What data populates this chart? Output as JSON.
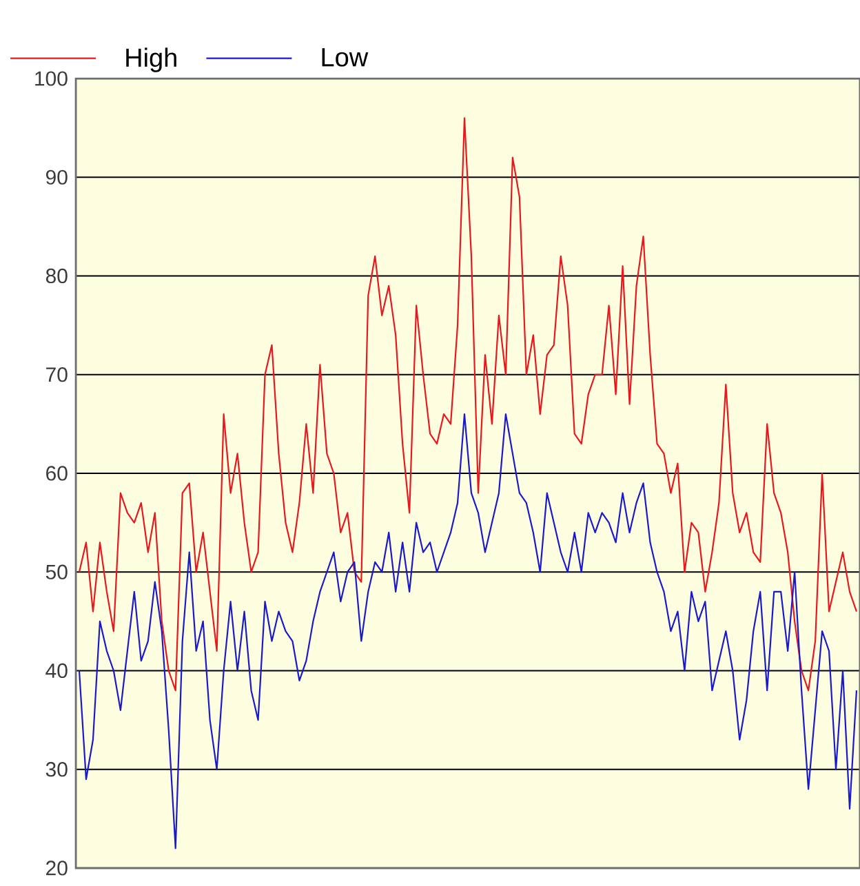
{
  "chart_data": {
    "type": "line",
    "categories": [
      null,
      null,
      null,
      null,
      null,
      null,
      null,
      null,
      null,
      null,
      null,
      null,
      null,
      null,
      null,
      null,
      null,
      null,
      null,
      null,
      null,
      null,
      null,
      null,
      null,
      null,
      null,
      null,
      null,
      null,
      null,
      null,
      null,
      null,
      null,
      null,
      null,
      null,
      null,
      null,
      null,
      null,
      null,
      null,
      null,
      null,
      null,
      null,
      null,
      null,
      null,
      null,
      null,
      null,
      null,
      null,
      null,
      null,
      null,
      null,
      null,
      null,
      null,
      null,
      null,
      null,
      null,
      null,
      null,
      null,
      null,
      null,
      null,
      null,
      null,
      null,
      null,
      null,
      null,
      null,
      null,
      null,
      null,
      null,
      null,
      null,
      null,
      null,
      null,
      null,
      null,
      null,
      null,
      null,
      null,
      null,
      null,
      null,
      null,
      null,
      null,
      null,
      null,
      null,
      null,
      null,
      null,
      null,
      null,
      null,
      null,
      null,
      null,
      null
    ],
    "series": [
      {
        "name": "High",
        "color": "#e8191e",
        "values": [
          50,
          53,
          46,
          53,
          48,
          44,
          58,
          56,
          55,
          57,
          52,
          56,
          45,
          40,
          38,
          58,
          59,
          50,
          54,
          48,
          42,
          66,
          58,
          62,
          55,
          50,
          52,
          70,
          73,
          62,
          55,
          52,
          57,
          65,
          58,
          71,
          62,
          60,
          54,
          56,
          50,
          49,
          78,
          82,
          76,
          79,
          74,
          63,
          56,
          77,
          70,
          64,
          63,
          66,
          65,
          75,
          96,
          82,
          58,
          72,
          65,
          76,
          70,
          92,
          88,
          70,
          74,
          66,
          72,
          73,
          82,
          77,
          64,
          63,
          68,
          70,
          70,
          77,
          68,
          81,
          67,
          79,
          84,
          72,
          63,
          62,
          58,
          61,
          50,
          55,
          54,
          48,
          52,
          57,
          69,
          58,
          54,
          56,
          52,
          51,
          65,
          58,
          56,
          52,
          45,
          40,
          38,
          43,
          60,
          46,
          49,
          52,
          48,
          46
        ]
      },
      {
        "name": "Low",
        "color": "#1a1acc",
        "values": [
          40,
          29,
          33,
          45,
          42,
          40,
          36,
          42,
          48,
          41,
          43,
          49,
          44,
          34,
          22,
          43,
          52,
          42,
          45,
          35,
          30,
          40,
          47,
          40,
          46,
          38,
          35,
          47,
          43,
          46,
          44,
          43,
          39,
          41,
          45,
          48,
          50,
          52,
          47,
          50,
          51,
          43,
          48,
          51,
          50,
          54,
          48,
          53,
          48,
          55,
          52,
          53,
          50,
          52,
          54,
          57,
          66,
          58,
          56,
          52,
          55,
          58,
          66,
          62,
          58,
          57,
          54,
          50,
          58,
          55,
          52,
          50,
          54,
          50,
          56,
          54,
          56,
          55,
          53,
          58,
          54,
          57,
          59,
          53,
          50,
          48,
          44,
          46,
          40,
          48,
          45,
          47,
          38,
          41,
          44,
          40,
          33,
          37,
          44,
          48,
          38,
          48,
          48,
          42,
          50,
          38,
          28,
          36,
          44,
          42,
          30,
          40,
          26,
          38
        ]
      }
    ],
    "ylim": [
      20,
      100
    ],
    "yticks": [
      20,
      30,
      40,
      50,
      60,
      70,
      80,
      90,
      100
    ],
    "grid": "y",
    "legend": "top left",
    "tick_labels": "y"
  }
}
